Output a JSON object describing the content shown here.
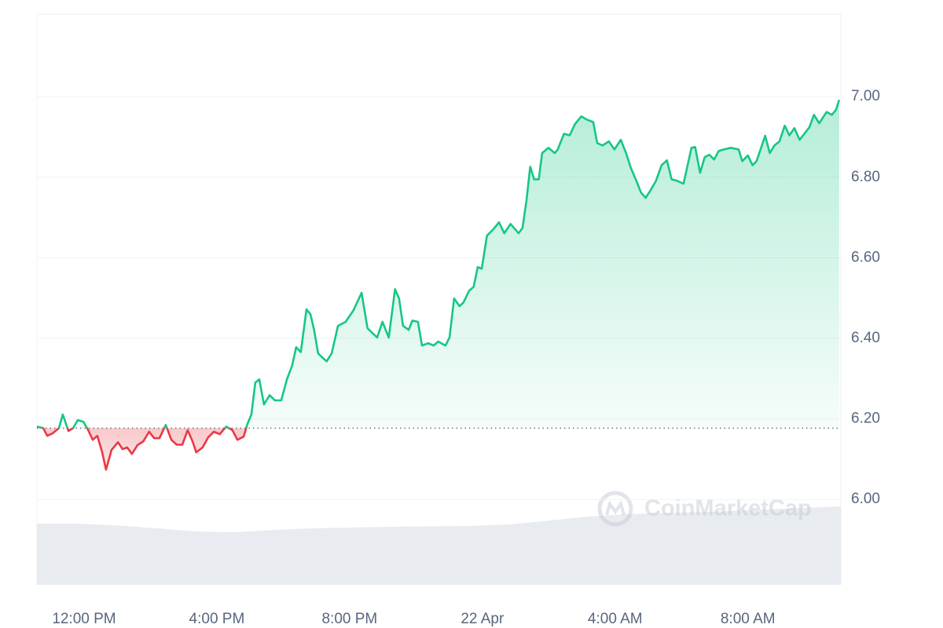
{
  "chart_data": {
    "type": "line",
    "x": [
      10.58,
      10.77,
      10.89,
      11.05,
      11.24,
      11.36,
      11.53,
      11.67,
      11.81,
      11.98,
      12.12,
      12.26,
      12.4,
      12.54,
      12.66,
      12.83,
      13.02,
      13.16,
      13.3,
      13.44,
      13.61,
      13.78,
      13.96,
      14.11,
      14.27,
      14.46,
      14.63,
      14.79,
      14.96,
      15.12,
      15.27,
      15.38,
      15.57,
      15.74,
      15.91,
      16.09,
      16.28,
      16.47,
      16.62,
      16.81,
      16.92,
      17.04,
      17.16,
      17.28,
      17.42,
      17.59,
      17.75,
      17.94,
      18.11,
      18.27,
      18.39,
      18.53,
      18.7,
      18.82,
      18.93,
      19.05,
      19.17,
      19.31,
      19.46,
      19.65,
      19.88,
      20.12,
      20.36,
      20.54,
      20.83,
      20.99,
      21.18,
      21.37,
      21.49,
      21.61,
      21.78,
      21.89,
      22.06,
      22.18,
      22.37,
      22.53,
      22.67,
      22.89,
      23.01,
      23.15,
      23.31,
      23.43,
      23.6,
      23.74,
      23.86,
      23.98,
      24.14,
      24.33,
      24.5,
      24.66,
      24.85,
      25.09,
      25.21,
      25.33,
      25.44,
      25.56,
      25.7,
      25.8,
      25.99,
      26.18,
      26.27,
      26.46,
      26.63,
      26.79,
      26.98,
      27.15,
      27.34,
      27.46,
      27.62,
      27.81,
      27.98,
      28.17,
      28.33,
      28.47,
      28.64,
      28.78,
      28.92,
      29.07,
      29.23,
      29.4,
      29.56,
      29.7,
      29.87,
      30.06,
      30.3,
      30.41,
      30.56,
      30.7,
      30.84,
      30.98,
      31.12,
      31.27,
      31.48,
      31.72,
      31.83,
      32.0,
      32.14,
      32.26,
      32.38,
      32.52,
      32.66,
      32.8,
      32.95,
      33.11,
      33.25,
      33.4,
      33.56,
      33.7,
      33.85,
      33.99,
      34.15,
      34.37,
      34.53,
      34.65,
      34.75
    ],
    "series": [
      {
        "up_color": "#16c784",
        "down_color": "#ea3943",
        "values": [
          6.181,
          6.177,
          6.158,
          6.164,
          6.177,
          6.211,
          6.17,
          6.177,
          6.197,
          6.193,
          6.173,
          6.148,
          6.158,
          6.119,
          6.074,
          6.123,
          6.142,
          6.125,
          6.129,
          6.113,
          6.135,
          6.144,
          6.168,
          6.152,
          6.152,
          6.185,
          6.148,
          6.136,
          6.136,
          6.172,
          6.144,
          6.117,
          6.129,
          6.154,
          6.168,
          6.162,
          6.181,
          6.172,
          6.148,
          6.156,
          6.187,
          6.211,
          6.29,
          6.298,
          6.236,
          6.259,
          6.246,
          6.246,
          6.298,
          6.333,
          6.378,
          6.366,
          6.472,
          6.46,
          6.421,
          6.363,
          6.353,
          6.343,
          6.363,
          6.431,
          6.441,
          6.47,
          6.513,
          6.425,
          6.402,
          6.441,
          6.402,
          6.522,
          6.499,
          6.431,
          6.421,
          6.444,
          6.441,
          6.382,
          6.388,
          6.382,
          6.392,
          6.382,
          6.402,
          6.499,
          6.48,
          6.489,
          6.518,
          6.528,
          6.577,
          6.573,
          6.655,
          6.671,
          6.688,
          6.661,
          6.684,
          6.661,
          6.674,
          6.743,
          6.826,
          6.795,
          6.795,
          6.86,
          6.873,
          6.86,
          6.869,
          6.908,
          6.904,
          6.932,
          6.951,
          6.943,
          6.937,
          6.885,
          6.879,
          6.889,
          6.869,
          6.893,
          6.86,
          6.824,
          6.791,
          6.762,
          6.749,
          6.768,
          6.791,
          6.83,
          6.842,
          6.795,
          6.791,
          6.784,
          6.873,
          6.875,
          6.811,
          6.85,
          6.856,
          6.844,
          6.865,
          6.869,
          6.873,
          6.869,
          6.84,
          6.854,
          6.83,
          6.84,
          6.869,
          6.903,
          6.86,
          6.879,
          6.889,
          6.928,
          6.904,
          6.922,
          6.893,
          6.908,
          6.924,
          6.955,
          6.934,
          6.962,
          6.955,
          6.967,
          6.992
        ]
      }
    ],
    "baseline": 6.177,
    "volume": {
      "x": [
        10.58,
        11.83,
        13.25,
        14.2,
        15.38,
        16.57,
        17.75,
        18.93,
        20.12,
        21.3,
        23.67,
        24.85,
        26.04,
        27.22,
        28.4,
        30.77,
        33.14,
        34.8
      ],
      "values": [
        78,
        78,
        75,
        72,
        68,
        67,
        70,
        72,
        73,
        74,
        75,
        77,
        82,
        87,
        90,
        93,
        97,
        100
      ],
      "ylim": [
        0,
        100
      ],
      "color": "#e8ebef"
    },
    "xlim": [
      10.58,
      34.8
    ],
    "xticks": [
      {
        "value": 12,
        "label": "12:00 PM"
      },
      {
        "value": 16,
        "label": "4:00 PM"
      },
      {
        "value": 20,
        "label": "8:00 PM"
      },
      {
        "value": 24,
        "label": "22 Apr"
      },
      {
        "value": 28,
        "label": "4:00 AM"
      },
      {
        "value": 32,
        "label": "8:00 AM"
      }
    ],
    "ylim": [
      5.788,
      7.205
    ],
    "yticks": [
      {
        "value": 6,
        "label": "6.00"
      },
      {
        "value": 6.2,
        "label": "6.20"
      },
      {
        "value": 6.4,
        "label": "6.40"
      },
      {
        "value": 6.6,
        "label": "6.60"
      },
      {
        "value": 6.8,
        "label": "6.80"
      },
      {
        "value": 7,
        "label": "7.00"
      }
    ],
    "grid": true,
    "watermark": "CoinMarketCap"
  }
}
